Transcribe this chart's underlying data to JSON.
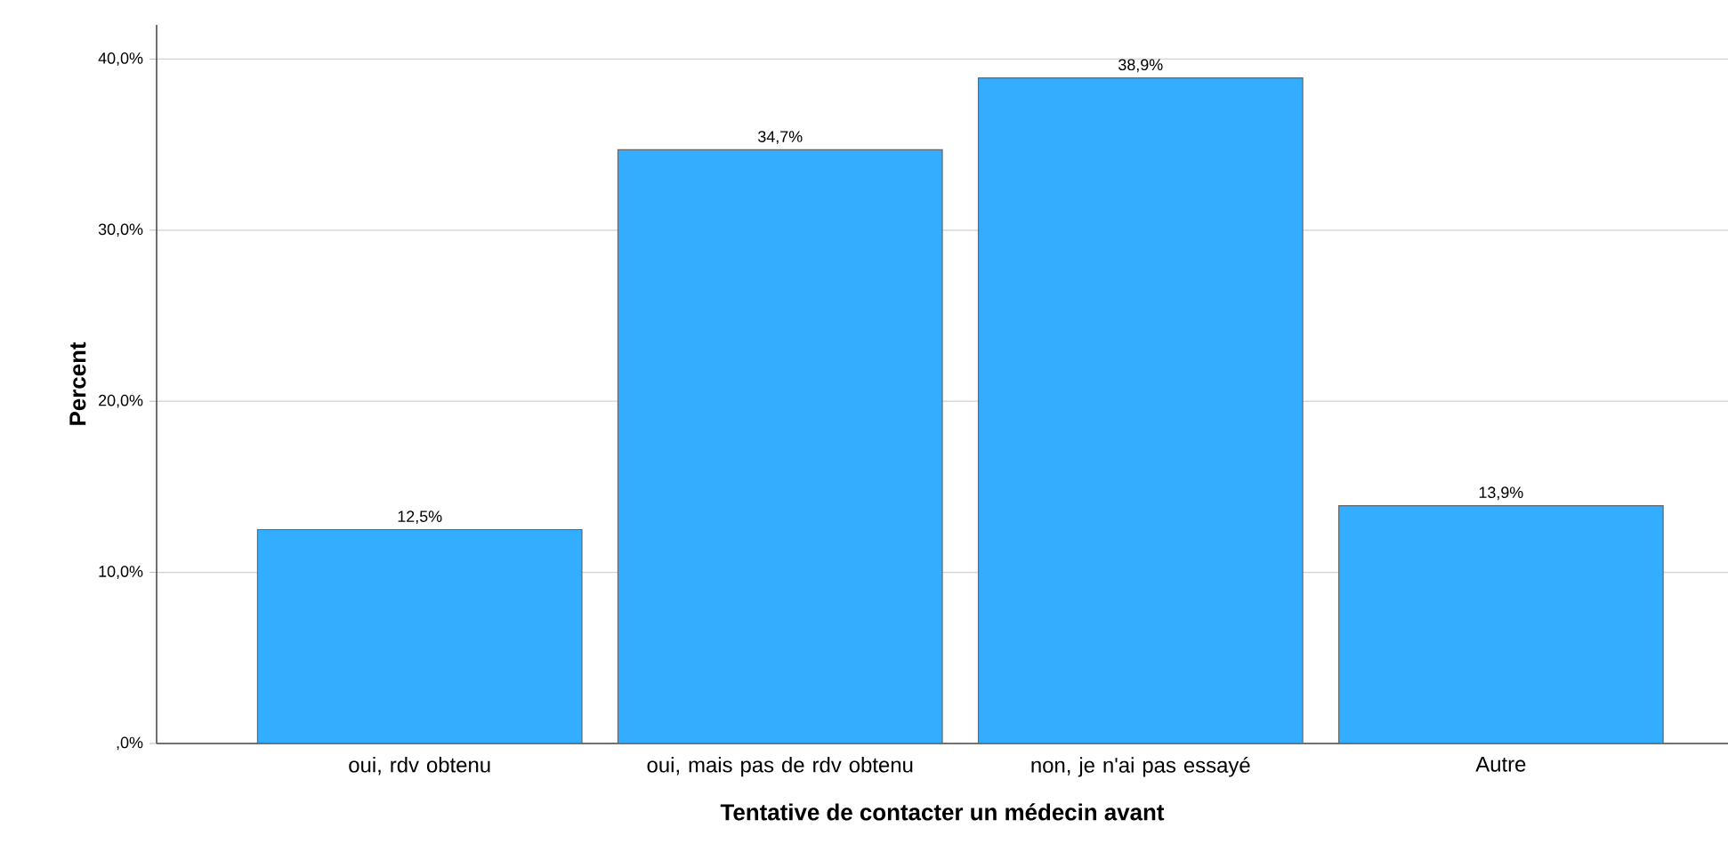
{
  "chart_data": {
    "type": "bar",
    "xlabel": "Tentative de contacter un médecin avant",
    "ylabel": "Percent",
    "categories": [
      "oui, rdv obtenu",
      "oui, mais pas de rdv obtenu",
      "non, je n'ai pas essayé",
      "Autre"
    ],
    "values": [
      12.5,
      34.7,
      38.9,
      13.9
    ],
    "value_labels": [
      "12,5%",
      "34,7%",
      "38,9%",
      "13,9%"
    ],
    "color": "#33adff",
    "ylim": [
      0,
      42
    ],
    "yticks": [
      {
        "value": 0,
        "label": ",0%"
      },
      {
        "value": 10,
        "label": "10,0%"
      },
      {
        "value": 20,
        "label": "20,0%"
      },
      {
        "value": 30,
        "label": "30,0%"
      },
      {
        "value": 40,
        "label": "40,0%"
      }
    ],
    "grid": "y"
  }
}
